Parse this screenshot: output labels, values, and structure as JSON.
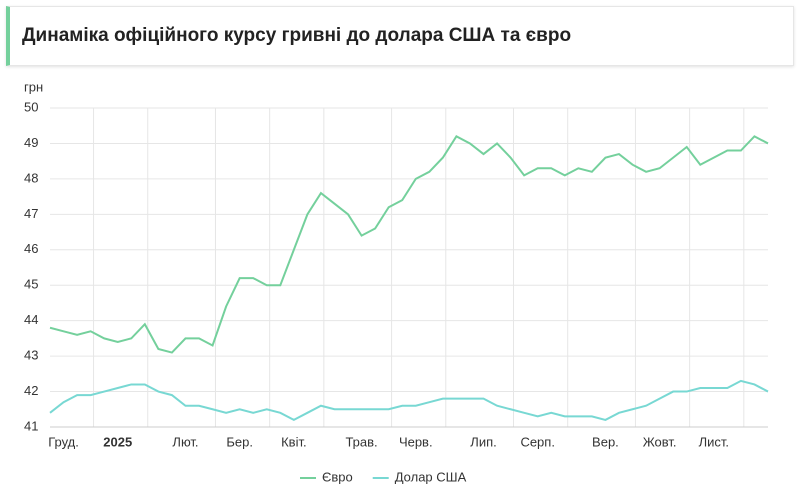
{
  "header": {
    "title": "Динаміка офіційного курсу гривні до долара США та євро"
  },
  "chart_data": {
    "type": "line",
    "y_label": "грн",
    "categories": [
      null,
      "Груд.",
      null,
      null,
      null,
      "2025",
      null,
      null,
      null,
      null,
      "Лют.",
      null,
      null,
      null,
      "Бер.",
      null,
      null,
      null,
      "Квіт.",
      null,
      null,
      null,
      null,
      "Трав.",
      null,
      null,
      null,
      "Черв.",
      null,
      null,
      null,
      null,
      "Лип.",
      null,
      null,
      null,
      "Серп.",
      null,
      null,
      null,
      null,
      "Вер.",
      null,
      null,
      null,
      "Жовт.",
      null,
      null,
      null,
      "Лист.",
      null,
      null,
      null,
      null
    ],
    "series": [
      {
        "name": "Євро",
        "color": "#74d09c",
        "values": [
          43.8,
          43.7,
          43.6,
          43.7,
          43.5,
          43.4,
          43.5,
          43.9,
          43.2,
          43.1,
          43.5,
          43.5,
          43.3,
          44.4,
          45.2,
          45.2,
          45.0,
          45.0,
          46.0,
          47.0,
          47.6,
          47.3,
          47.0,
          46.4,
          46.6,
          47.2,
          47.4,
          48.0,
          48.2,
          48.6,
          49.2,
          49.0,
          48.7,
          49.0,
          48.6,
          48.1,
          48.3,
          48.3,
          48.1,
          48.3,
          48.2,
          48.6,
          48.7,
          48.4,
          48.2,
          48.3,
          48.6,
          48.9,
          48.4,
          48.6,
          48.8,
          48.8,
          49.2,
          49.0
        ]
      },
      {
        "name": "Долар США",
        "color": "#78d8d3",
        "values": [
          41.4,
          41.7,
          41.9,
          41.9,
          42.0,
          42.1,
          42.2,
          42.2,
          42.0,
          41.9,
          41.6,
          41.6,
          41.5,
          41.4,
          41.5,
          41.4,
          41.5,
          41.4,
          41.2,
          41.4,
          41.6,
          41.5,
          41.5,
          41.5,
          41.5,
          41.5,
          41.6,
          41.6,
          41.7,
          41.8,
          41.8,
          41.8,
          41.8,
          41.6,
          41.5,
          41.4,
          41.3,
          41.4,
          41.3,
          41.3,
          41.3,
          41.2,
          41.4,
          41.5,
          41.6,
          41.8,
          42.0,
          42.0,
          42.1,
          42.1,
          42.1,
          42.3,
          42.2,
          42.0
        ]
      }
    ],
    "ylim": [
      41,
      50
    ],
    "yticks": [
      41,
      42,
      43,
      44,
      45,
      46,
      47,
      48,
      49,
      50
    ],
    "grid": true,
    "legend": "bottom"
  }
}
